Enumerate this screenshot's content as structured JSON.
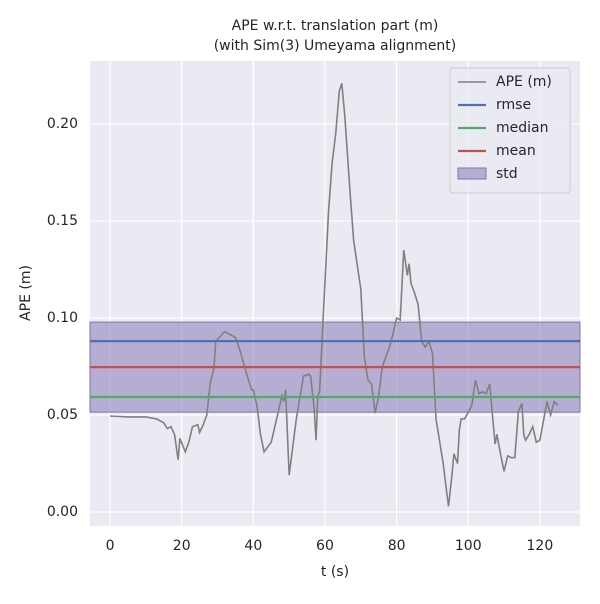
{
  "chart_data": {
    "type": "line",
    "title": "APE w.r.t. translation part (m)",
    "subtitle": "(with Sim(3) Umeyama alignment)",
    "xlabel": "t (s)",
    "ylabel": "APE (m)",
    "x": [
      0,
      5,
      10,
      13,
      15,
      16,
      17,
      18,
      19,
      19.5,
      21,
      22,
      23,
      24.5,
      25,
      26,
      27,
      28,
      29,
      29.5,
      31,
      32,
      34,
      35,
      36,
      38,
      39.5,
      40,
      41,
      42,
      43,
      45,
      47,
      48,
      48.5,
      49,
      50,
      52,
      54,
      55.5,
      56,
      57,
      57.5,
      58,
      58.5,
      59.5,
      61,
      62,
      63,
      64,
      64.7,
      65.5,
      67,
      68,
      70,
      71,
      72,
      73,
      74,
      75,
      76,
      78,
      79,
      80,
      81,
      82,
      83,
      83.5,
      84,
      85,
      86,
      87,
      88,
      89,
      90,
      91,
      93,
      94,
      94.5,
      95.5,
      96,
      97,
      97.5,
      98,
      99,
      101,
      102,
      103,
      104,
      105,
      106,
      107,
      107.5,
      108,
      109,
      110,
      111,
      112,
      113,
      114,
      115,
      115.5,
      116,
      117,
      118,
      119,
      120,
      121,
      122,
      123,
      124,
      125
    ],
    "series": [
      {
        "name": "APE (m)",
        "color": "#808080",
        "values": [
          0.0495,
          0.049,
          0.049,
          0.048,
          0.046,
          0.043,
          0.044,
          0.04,
          0.027,
          0.038,
          0.031,
          0.036,
          0.044,
          0.045,
          0.041,
          0.045,
          0.05,
          0.067,
          0.074,
          0.088,
          0.091,
          0.093,
          0.091,
          0.09,
          0.085,
          0.072,
          0.063,
          0.063,
          0.055,
          0.04,
          0.031,
          0.036,
          0.052,
          0.06,
          0.057,
          0.063,
          0.019,
          0.048,
          0.07,
          0.071,
          0.07,
          0.053,
          0.037,
          0.06,
          0.062,
          0.1,
          0.155,
          0.18,
          0.195,
          0.217,
          0.221,
          0.205,
          0.165,
          0.14,
          0.115,
          0.08,
          0.068,
          0.066,
          0.051,
          0.06,
          0.075,
          0.085,
          0.092,
          0.1,
          0.099,
          0.135,
          0.122,
          0.128,
          0.118,
          0.113,
          0.107,
          0.088,
          0.085,
          0.088,
          0.082,
          0.048,
          0.025,
          0.01,
          0.003,
          0.02,
          0.03,
          0.025,
          0.042,
          0.048,
          0.048,
          0.055,
          0.068,
          0.061,
          0.062,
          0.061,
          0.066,
          0.045,
          0.035,
          0.04,
          0.03,
          0.021,
          0.029,
          0.028,
          0.028,
          0.052,
          0.056,
          0.04,
          0.037,
          0.04,
          0.044,
          0.036,
          0.037,
          0.047,
          0.057,
          0.05,
          0.057,
          0.055
        ]
      }
    ],
    "stats": [
      {
        "name": "rmse",
        "color": "#4c72b0",
        "value": 0.0881
      },
      {
        "name": "median",
        "color": "#55a868",
        "value": 0.0593
      },
      {
        "name": "mean",
        "color": "#c44e52",
        "value": 0.0747
      }
    ],
    "std_band": {
      "name": "std",
      "color": "#8172b2",
      "value": 0.0232
    },
    "xlim": [
      -5.6,
      131.2
    ],
    "ylim": [
      -0.0072,
      0.2325
    ],
    "xticks": [
      0,
      20,
      40,
      60,
      80,
      100,
      120
    ],
    "yticks": [
      {
        "value": 0,
        "label": "0.00"
      },
      0.05,
      {
        "value": 0.1,
        "label": "0.10"
      },
      0.15,
      {
        "value": 0.2,
        "label": "0.20"
      }
    ],
    "grid": true,
    "legend": "upper right"
  }
}
